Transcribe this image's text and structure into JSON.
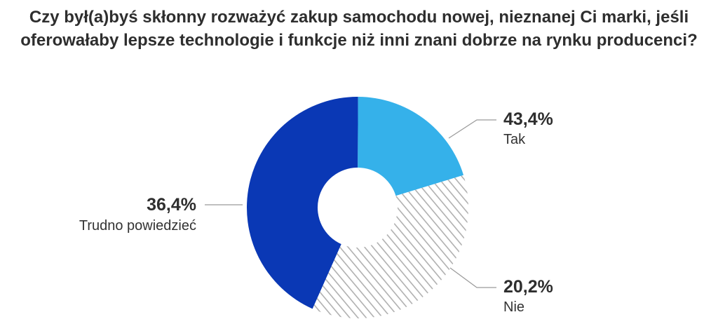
{
  "chart_data": {
    "type": "pie",
    "title": "Czy był(a)byś skłonny rozważyć zakup samochodu nowej, nieznanej Ci marki, jeśli oferowałaby lepsze technologie i funkcje niż inni znani dobrze na rynku producenci?",
    "slices": [
      {
        "label": "Tak",
        "value": 43.4,
        "display": "43,4%",
        "color": "#0a38b5",
        "pattern": "solid"
      },
      {
        "label": "Nie",
        "value": 20.2,
        "display": "20,2%",
        "color": "#35b1ea",
        "pattern": "solid"
      },
      {
        "label": "Trudno powiedzieć",
        "value": 36.4,
        "display": "36,4%",
        "color": "#b0b0b0",
        "pattern": "hatched"
      }
    ],
    "donut": true,
    "legend": "callout-labels"
  }
}
